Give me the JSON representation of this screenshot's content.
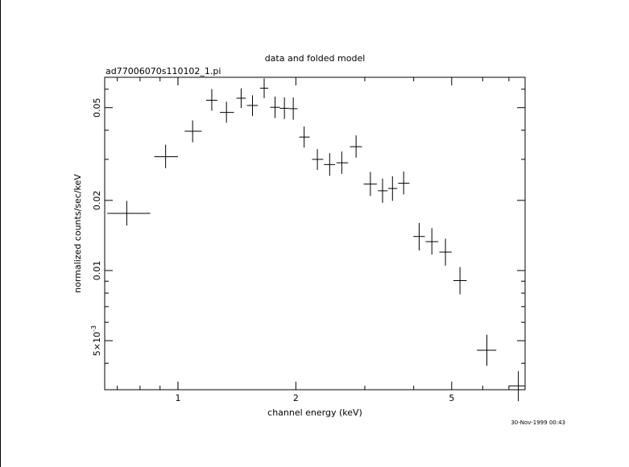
{
  "chart_data": {
    "type": "scatter",
    "title": "data and folded model",
    "subtitle": "ad77006070s110102_1.pi",
    "xlabel": "channel energy (keV)",
    "ylabel": "normalized counts/sec/keV",
    "timestamp": "30-Nov-1999 00:43",
    "xscale": "log",
    "yscale": "log",
    "xlim": [
      0.65,
      7.7
    ],
    "ylim": [
      0.00308,
      0.0675
    ],
    "x_ticks": [
      {
        "value": 1,
        "label": "1"
      },
      {
        "value": 2,
        "label": "2"
      },
      {
        "value": 5,
        "label": "5"
      }
    ],
    "y_ticks": [
      {
        "value": 0.005,
        "label": "5×10",
        "exp": "-3"
      },
      {
        "value": 0.01,
        "label": "0.01"
      },
      {
        "value": 0.02,
        "label": "0.02"
      },
      {
        "value": 0.05,
        "label": "0.05"
      }
    ],
    "grid": false,
    "series": [
      {
        "style": "crosses",
        "color": "#000000",
        "points": [
          {
            "x": 0.74,
            "xlo": 0.66,
            "xhi": 0.85,
            "y": 0.0176,
            "ylo": 0.0156,
            "yhi": 0.0199
          },
          {
            "x": 0.93,
            "xlo": 0.87,
            "xhi": 1.0,
            "y": 0.0308,
            "ylo": 0.0275,
            "yhi": 0.0347
          },
          {
            "x": 1.09,
            "xlo": 1.04,
            "xhi": 1.15,
            "y": 0.0396,
            "ylo": 0.0355,
            "yhi": 0.0441
          },
          {
            "x": 1.22,
            "xlo": 1.18,
            "xhi": 1.26,
            "y": 0.0538,
            "ylo": 0.0485,
            "yhi": 0.0601
          },
          {
            "x": 1.33,
            "xlo": 1.28,
            "xhi": 1.39,
            "y": 0.0477,
            "ylo": 0.0431,
            "yhi": 0.053
          },
          {
            "x": 1.45,
            "xlo": 1.41,
            "xhi": 1.49,
            "y": 0.0549,
            "ylo": 0.0498,
            "yhi": 0.0605
          },
          {
            "x": 1.55,
            "xlo": 1.5,
            "xhi": 1.6,
            "y": 0.0511,
            "ylo": 0.046,
            "yhi": 0.0565
          },
          {
            "x": 1.66,
            "xlo": 1.62,
            "xhi": 1.7,
            "y": 0.0606,
            "ylo": 0.0549,
            "yhi": 0.0668
          },
          {
            "x": 1.77,
            "xlo": 1.72,
            "xhi": 1.82,
            "y": 0.0502,
            "ylo": 0.0451,
            "yhi": 0.0558
          },
          {
            "x": 1.87,
            "xlo": 1.82,
            "xhi": 1.92,
            "y": 0.0497,
            "ylo": 0.0447,
            "yhi": 0.0554
          },
          {
            "x": 1.97,
            "xlo": 1.92,
            "xhi": 2.02,
            "y": 0.0495,
            "ylo": 0.0444,
            "yhi": 0.0553
          },
          {
            "x": 2.1,
            "xlo": 2.04,
            "xhi": 2.17,
            "y": 0.0374,
            "ylo": 0.0337,
            "yhi": 0.0415
          },
          {
            "x": 2.27,
            "xlo": 2.2,
            "xhi": 2.35,
            "y": 0.03,
            "ylo": 0.027,
            "yhi": 0.0332
          },
          {
            "x": 2.44,
            "xlo": 2.36,
            "xhi": 2.52,
            "y": 0.0285,
            "ylo": 0.0255,
            "yhi": 0.0319
          },
          {
            "x": 2.62,
            "xlo": 2.54,
            "xhi": 2.72,
            "y": 0.029,
            "ylo": 0.026,
            "yhi": 0.0324
          },
          {
            "x": 2.85,
            "xlo": 2.75,
            "xhi": 2.95,
            "y": 0.034,
            "ylo": 0.0305,
            "yhi": 0.038
          },
          {
            "x": 3.1,
            "xlo": 2.98,
            "xhi": 3.22,
            "y": 0.0235,
            "ylo": 0.0209,
            "yhi": 0.0265
          },
          {
            "x": 3.33,
            "xlo": 3.24,
            "xhi": 3.43,
            "y": 0.022,
            "ylo": 0.0195,
            "yhi": 0.0248
          },
          {
            "x": 3.53,
            "xlo": 3.44,
            "xhi": 3.63,
            "y": 0.0225,
            "ylo": 0.0199,
            "yhi": 0.0254
          },
          {
            "x": 3.77,
            "xlo": 3.65,
            "xhi": 3.9,
            "y": 0.0237,
            "ylo": 0.0212,
            "yhi": 0.0266
          },
          {
            "x": 4.13,
            "xlo": 3.99,
            "xhi": 4.27,
            "y": 0.014,
            "ylo": 0.0122,
            "yhi": 0.016
          },
          {
            "x": 4.45,
            "xlo": 4.29,
            "xhi": 4.62,
            "y": 0.0133,
            "ylo": 0.0117,
            "yhi": 0.0152
          },
          {
            "x": 4.82,
            "xlo": 4.65,
            "xhi": 5.0,
            "y": 0.012,
            "ylo": 0.0105,
            "yhi": 0.0137
          },
          {
            "x": 5.25,
            "xlo": 5.05,
            "xhi": 5.46,
            "y": 0.00905,
            "ylo": 0.0079,
            "yhi": 0.01035
          },
          {
            "x": 6.15,
            "xlo": 5.8,
            "xhi": 6.5,
            "y": 0.00455,
            "ylo": 0.0039,
            "yhi": 0.0053
          },
          {
            "x": 7.4,
            "xlo": 7.0,
            "xhi": 7.72,
            "y": 0.0032,
            "ylo": 0.00275,
            "yhi": 0.0037
          }
        ]
      }
    ]
  }
}
